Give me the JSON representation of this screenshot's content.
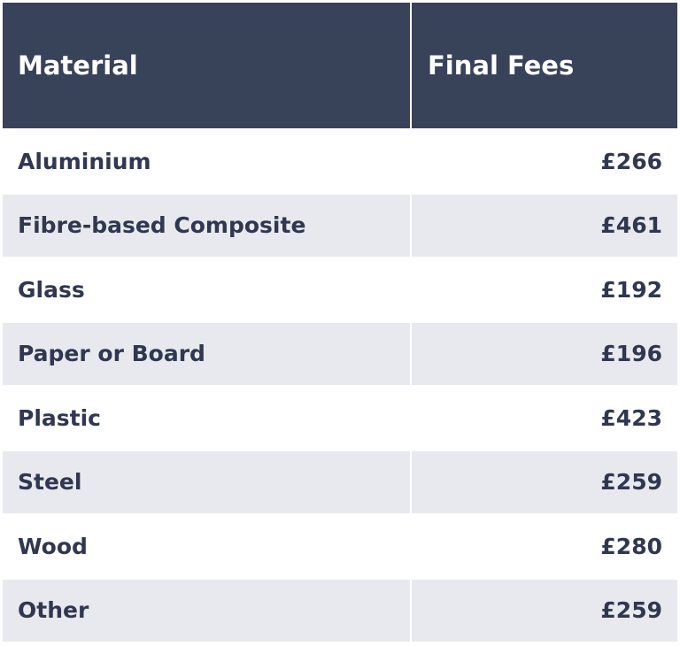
{
  "table": {
    "header": [
      "Material",
      "Final Fees"
    ],
    "rows": [
      [
        "Aluminium",
        "£266"
      ],
      [
        "Fibre-based Composite",
        "£461"
      ],
      [
        "Glass",
        "£192"
      ],
      [
        "Paper or Board",
        "£196"
      ],
      [
        "Plastic",
        "£423"
      ],
      [
        "Steel",
        "£259"
      ],
      [
        "Wood",
        "£280"
      ],
      [
        "Other",
        "£259"
      ]
    ]
  }
}
